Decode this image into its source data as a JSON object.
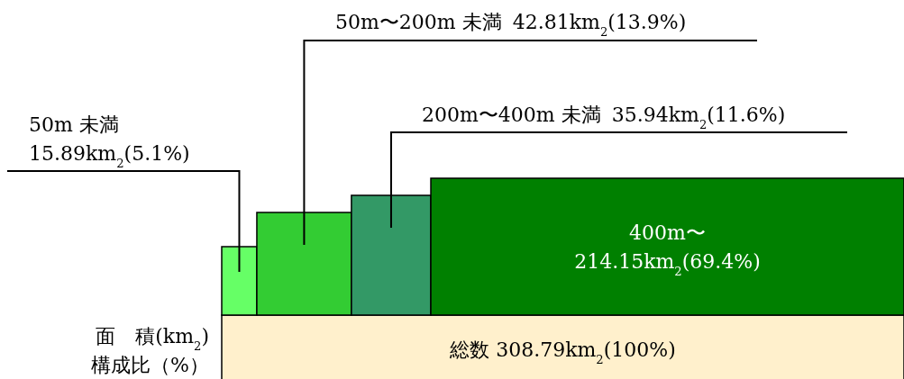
{
  "chart_data": {
    "type": "other",
    "categories": [
      "50m 未満",
      "50m〜200m 未満",
      "200m〜400m 未満",
      "400m〜"
    ],
    "values": [
      15.89,
      42.81,
      35.94,
      214.15
    ],
    "value_labels": [
      "15.89km$_{2}$(5.1%)",
      "42.81km$_{2}$(13.9%)",
      "35.94km$_{2}$(11.6%)",
      "214.15km$_{2}$(69.4%)"
    ],
    "colors": [
      "#66ff66",
      "#33cc33",
      "#339966",
      "#008000"
    ],
    "annotations": [
      "総数 308.79km$_{2}$(100%)",
      "面　積(km$_{2}$)",
      "構成比（%）"
    ]
  }
}
